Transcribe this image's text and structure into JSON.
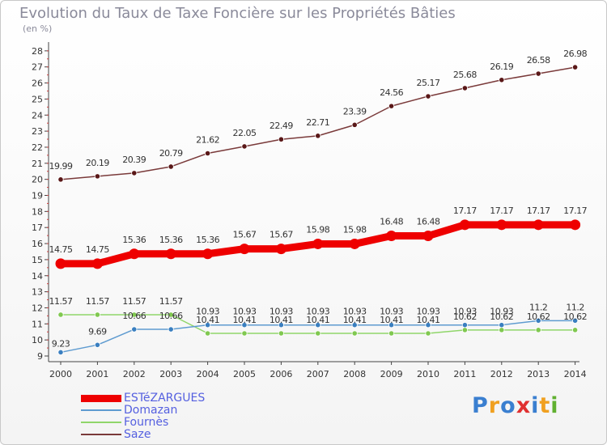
{
  "title": "Evolution du Taux de Taxe Foncière sur les Propriétés Bâties",
  "subtitle": "(en %)",
  "logo": {
    "text": "Proxiti",
    "colors": [
      "#3a7fd0",
      "#f0a020",
      "#3a7fd0",
      "#e03030",
      "#3a7fd0",
      "#f0a020",
      "#60b030"
    ]
  },
  "chart_data": {
    "type": "line",
    "title": "Evolution du Taux de Taxe Foncière sur les Propriétés Bâties",
    "ylabel": "(en %)",
    "ylim": [
      9,
      28
    ],
    "yticks": [
      "9",
      "10",
      "11",
      "12",
      "13",
      "14",
      "15",
      "16",
      "17",
      "18",
      "19",
      "20",
      "21",
      "22",
      "23",
      "24",
      "25",
      "26",
      "27",
      "28"
    ],
    "x": [
      "2000",
      "2001",
      "2002",
      "2003",
      "2004",
      "2005",
      "2006",
      "2007",
      "2008",
      "2009",
      "2010",
      "2011",
      "2012",
      "2013",
      "2014"
    ],
    "grid": false,
    "legend_position": "bottom-left",
    "series": [
      {
        "name": "ESTéZARGUES",
        "color": "#ee0000",
        "markerColor": "#ee0000",
        "width": 9,
        "labels": [
          "14.75",
          "14.75",
          "15.36",
          "15.36",
          "15.36",
          "15.67",
          "15.67",
          "15.98",
          "15.98",
          "16.48",
          "16.48",
          "17.17",
          "17.17",
          "17.17",
          "17.17"
        ],
        "values": [
          14.75,
          14.75,
          15.36,
          15.36,
          15.36,
          15.67,
          15.67,
          15.98,
          15.98,
          16.48,
          16.48,
          17.17,
          17.17,
          17.17,
          17.17
        ]
      },
      {
        "name": "Domazan",
        "color": "#5e9bd0",
        "markerColor": "#3a7fc0",
        "width": 1.5,
        "labels": [
          "9.23",
          "9.69",
          "10.66",
          "10.66",
          "10.93",
          "10.93",
          "10.93",
          "10.93",
          "10.93",
          "10.93",
          "10.93",
          "10.93",
          "10.93",
          "11.2",
          "11.2"
        ],
        "values": [
          9.23,
          9.69,
          10.66,
          10.66,
          10.93,
          10.93,
          10.93,
          10.93,
          10.93,
          10.93,
          10.93,
          10.93,
          10.93,
          11.2,
          11.2
        ]
      },
      {
        "name": "Fournès",
        "color": "#90d66a",
        "markerColor": "#80c850",
        "width": 1.5,
        "labels": [
          "11.57",
          "11.57",
          "11.57",
          "11.57",
          "10.41",
          "10.41",
          "10.41",
          "10.41",
          "10.41",
          "10.41",
          "10.41",
          "10.62",
          "10.62",
          "10.62",
          "10.62"
        ],
        "values": [
          11.57,
          11.57,
          11.57,
          11.57,
          10.41,
          10.41,
          10.41,
          10.41,
          10.41,
          10.41,
          10.41,
          10.62,
          10.62,
          10.62,
          10.62
        ]
      },
      {
        "name": "Saze",
        "color": "#7a3a3a",
        "markerColor": "#5a1818",
        "width": 1.5,
        "labels": [
          "19.99",
          "20.19",
          "20.39",
          "20.79",
          "21.62",
          "22.05",
          "22.49",
          "22.71",
          "23.39",
          "24.56",
          "25.17",
          "25.68",
          "26.19",
          "26.58",
          "26.98"
        ],
        "values": [
          19.99,
          20.19,
          20.39,
          20.79,
          21.62,
          22.05,
          22.49,
          22.71,
          23.39,
          24.56,
          25.17,
          25.68,
          26.19,
          26.58,
          26.98
        ]
      }
    ]
  }
}
